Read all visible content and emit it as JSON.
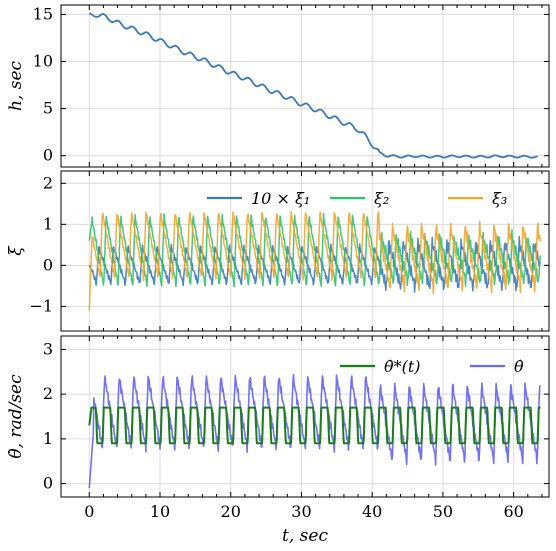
{
  "chart_data": [
    {
      "type": "line",
      "ylabel": "h, sec",
      "xlim": [
        -4,
        65
      ],
      "ylim": [
        -1.2,
        16
      ],
      "yticks": [
        0,
        5,
        10,
        15
      ],
      "grid": true,
      "series": [
        {
          "color": "#3a7ab8",
          "x": [
            0,
            1,
            2,
            3,
            4,
            5,
            6,
            8,
            10,
            12,
            14,
            16,
            18,
            20,
            22,
            24,
            26,
            28,
            30,
            32,
            34,
            36,
            38,
            39,
            40,
            41,
            42,
            44,
            46,
            48,
            50,
            52,
            54,
            56,
            58,
            60,
            62,
            63.5
          ],
          "y": [
            14.8,
            15.0,
            14.8,
            14.5,
            14.1,
            13.8,
            13.5,
            12.9,
            12.2,
            11.5,
            10.8,
            10.2,
            9.5,
            8.8,
            8.2,
            7.5,
            6.8,
            6.2,
            5.5,
            4.9,
            4.2,
            3.5,
            2.8,
            2.1,
            1.2,
            0.3,
            0.0,
            -0.1,
            -0.05,
            -0.1,
            -0.1,
            -0.05,
            -0.1,
            -0.1,
            -0.05,
            -0.1,
            -0.1,
            -0.15
          ],
          "ripple": 0.25
        }
      ]
    },
    {
      "type": "line",
      "ylabel": "ξ",
      "xlim": [
        -4,
        65
      ],
      "ylim": [
        -1.6,
        2.3
      ],
      "yticks": [
        -1,
        0,
        1,
        2
      ],
      "grid": true,
      "legend_position": "top-right",
      "series": [
        {
          "name": "10 × ξ₁",
          "color": "#3a7ab8",
          "mean": 0.0,
          "amp_phase1": 0.45,
          "amp_phase2": 0.55,
          "start": 0.0
        },
        {
          "name": "ξ₂",
          "color": "#2fc26e",
          "mean": 0.35,
          "amp_phase1": 0.85,
          "amp_phase2": 0.55,
          "start": 0.6
        },
        {
          "name": "ξ₃",
          "color": "#f0a62c",
          "mean": 0.5,
          "amp_phase1": 0.8,
          "amp_phase2": 0.75,
          "start": -1.1
        }
      ]
    },
    {
      "type": "line",
      "ylabel": "θ̇, rad/sec",
      "xlabel": "t, sec",
      "xlim": [
        -4,
        65
      ],
      "ylim": [
        -0.3,
        3.3
      ],
      "yticks": [
        0,
        1,
        2,
        3
      ],
      "xticks": [
        0,
        10,
        20,
        30,
        40,
        50,
        60
      ],
      "grid": true,
      "legend_position": "top-right",
      "series": [
        {
          "name": "θ̇*(t)",
          "color": "#1a7f1a",
          "high": 1.7,
          "low": 0.9,
          "start": 1.3
        },
        {
          "name": "θ̇",
          "color": "#6a6af2",
          "mean": 1.6,
          "amp_phase1": 0.8,
          "amp_phase2": 0.85,
          "start": -0.1
        }
      ]
    }
  ],
  "period": 2.05,
  "t_end": 63.8,
  "phase_change_t": 41
}
